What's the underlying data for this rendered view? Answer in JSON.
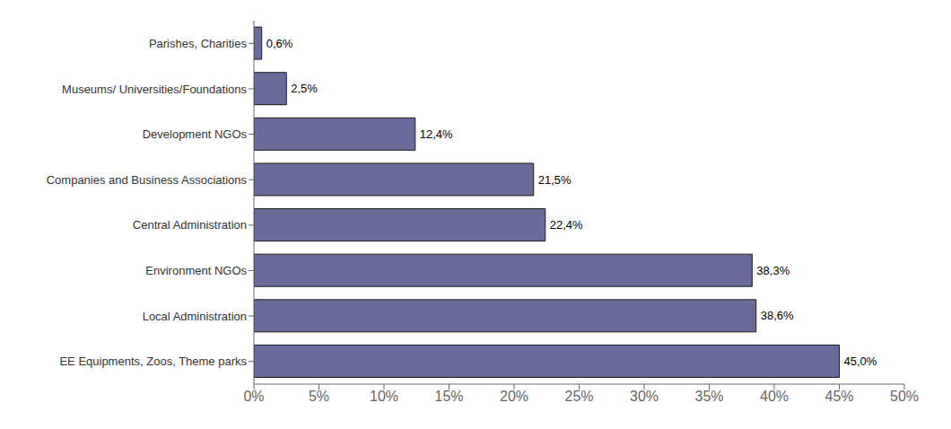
{
  "chart_data": {
    "type": "bar",
    "orientation": "horizontal",
    "categories": [
      "EE Equipments, Zoos, Theme parks",
      "Local Administration",
      "Environment NGOs",
      "Central Administration",
      "Companies and Business Associations",
      "Development NGOs",
      "Museums/ Universities/Foundations",
      "Parishes, Charities"
    ],
    "values": [
      45.0,
      38.6,
      38.3,
      22.4,
      21.5,
      12.4,
      2.5,
      0.6
    ],
    "value_labels": [
      "45,0%",
      "38,6%",
      "38,3%",
      "22,4%",
      "21,5%",
      "12,4%",
      "2,5%",
      "0,6%"
    ],
    "data_labels": true,
    "color": "#6b6b9b",
    "xlim": [
      0,
      50
    ],
    "xticks": [
      {
        "value": 0,
        "label": "0%"
      },
      {
        "value": 5,
        "label": "5%"
      },
      {
        "value": 10,
        "label": "10%"
      },
      {
        "value": 15,
        "label": "15%"
      },
      {
        "value": 20,
        "label": "20%"
      },
      {
        "value": 25,
        "label": "25%"
      },
      {
        "value": 30,
        "label": "30%"
      },
      {
        "value": 35,
        "label": "35%"
      },
      {
        "value": 40,
        "label": "40%"
      },
      {
        "value": 45,
        "label": "45%"
      },
      {
        "value": 50,
        "label": "50%"
      }
    ],
    "grid": false
  }
}
